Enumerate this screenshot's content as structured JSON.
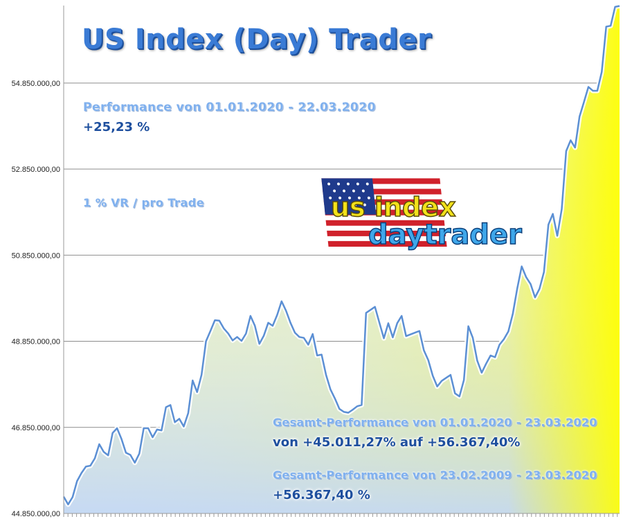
{
  "chart_data": {
    "type": "area",
    "title": "US Index (Day) Trader",
    "xlabel": "",
    "ylabel": "",
    "yticks": [
      "54.850.000,00",
      "52.850.000,00",
      "50.850.000,00",
      "48.850.000,00",
      "46.850.000,00",
      "44.850.000,00"
    ],
    "ytick_values": [
      54850000,
      52850000,
      50850000,
      48850000,
      46850000,
      44850000
    ],
    "ylim": [
      44850000,
      56650000
    ],
    "grid": true,
    "values": [
      45240000,
      45060000,
      45230000,
      45600000,
      45790000,
      45940000,
      45960000,
      46130000,
      46460000,
      46280000,
      46200000,
      46720000,
      46830000,
      46580000,
      46260000,
      46210000,
      46030000,
      46240000,
      46830000,
      46830000,
      46620000,
      46800000,
      46780000,
      47320000,
      47370000,
      46970000,
      47050000,
      46870000,
      47180000,
      47940000,
      47670000,
      48070000,
      48850000,
      49090000,
      49340000,
      49330000,
      49150000,
      49030000,
      48870000,
      48950000,
      48860000,
      49030000,
      49440000,
      49210000,
      48790000,
      48980000,
      49280000,
      49210000,
      49460000,
      49780000,
      49560000,
      49280000,
      49050000,
      48950000,
      48930000,
      48770000,
      49020000,
      48520000,
      48540000,
      48070000,
      47730000,
      47520000,
      47280000,
      47210000,
      47190000,
      47260000,
      47340000,
      47370000,
      49510000,
      49580000,
      49650000,
      49280000,
      48920000,
      49270000,
      48940000,
      49270000,
      49440000,
      48970000,
      49010000,
      49050000,
      49090000,
      48640000,
      48410000,
      48050000,
      47800000,
      47930000,
      48000000,
      48070000,
      47640000,
      47570000,
      47950000,
      49200000,
      48930000,
      48400000,
      48120000,
      48330000,
      48520000,
      48480000,
      48770000,
      48900000,
      49080000,
      49490000,
      50080000,
      50590000,
      50340000,
      50180000,
      49870000,
      50070000,
      50460000,
      51560000,
      51810000,
      51300000,
      51920000,
      53270000,
      53520000,
      53350000,
      54070000,
      54410000,
      54760000,
      54670000,
      54670000,
      55110000,
      56160000,
      56180000,
      56620000,
      56640000
    ]
  },
  "overlay": {
    "performance_label": "Performance  von  01.01.2020 - 22.03.2020",
    "performance_value": "+25,23 %",
    "risk_label": "1 % VR / pro Trade",
    "gesamt1_label": "Gesamt-Performance  von  01.01.2020 - 23.03.2020",
    "gesamt1_value": "von +45.011,27% auf  +56.367,40%",
    "gesamt2_label": "Gesamt-Performance  von  23.02.2009 - 23.03.2020",
    "gesamt2_value": "+56.367,40 %"
  },
  "logo": {
    "line1": "us index",
    "line2": "daytrader"
  },
  "colors": {
    "area_top": "#ffff00",
    "area_bottom": "#c8dcf8",
    "line": "#5b8fd4",
    "grid": "#8c8c8c",
    "title": "#3a7bd5"
  }
}
